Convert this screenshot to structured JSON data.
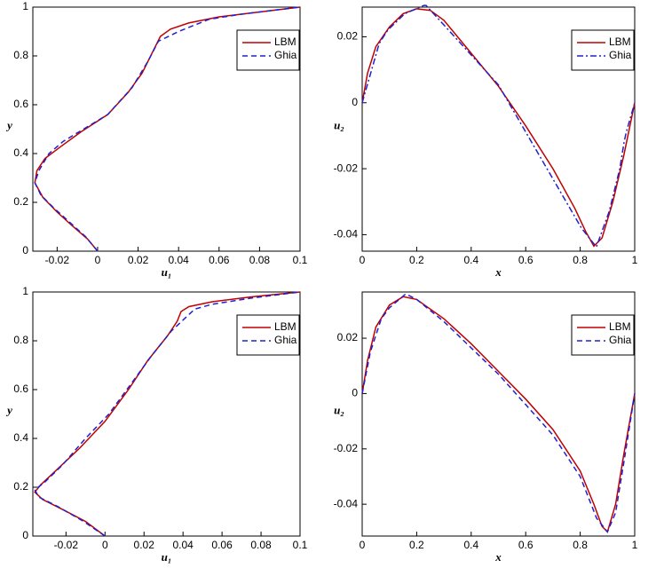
{
  "chart_data": [
    {
      "type": "line",
      "x_label": "u₁",
      "y_label": "y",
      "xlim": [
        -0.032,
        0.1
      ],
      "ylim": [
        0,
        1
      ],
      "xticks": [
        -0.02,
        0,
        0.02,
        0.04,
        0.06,
        0.08,
        0.1
      ],
      "yticks": [
        0,
        0.2,
        0.4,
        0.6,
        0.8,
        1
      ],
      "legend": "upper right",
      "series": [
        {
          "name": "LBM",
          "color": "#c00000",
          "style": "solid",
          "x": [
            0,
            -0.005,
            -0.012,
            -0.02,
            -0.027,
            -0.031,
            -0.03,
            -0.026,
            -0.018,
            -0.008,
            0.005,
            0.015,
            0.022,
            0.028,
            0.031,
            0.036,
            0.045,
            0.06,
            0.08,
            0.1
          ],
          "values": [
            0,
            0.05,
            0.1,
            0.16,
            0.22,
            0.28,
            0.33,
            0.38,
            0.43,
            0.49,
            0.56,
            0.65,
            0.73,
            0.83,
            0.88,
            0.91,
            0.935,
            0.96,
            0.98,
            1
          ]
        },
        {
          "name": "Ghia",
          "color": "#2020d0",
          "style": "dashed",
          "x": [
            0,
            -0.006,
            -0.014,
            -0.022,
            -0.028,
            -0.031,
            -0.029,
            -0.024,
            -0.017,
            -0.005,
            0.005,
            0.017,
            0.025,
            0.03,
            0.04,
            0.055,
            0.07,
            0.085,
            0.1
          ],
          "values": [
            0,
            0.06,
            0.12,
            0.18,
            0.23,
            0.28,
            0.33,
            0.4,
            0.45,
            0.51,
            0.56,
            0.67,
            0.78,
            0.86,
            0.9,
            0.95,
            0.97,
            0.985,
            1
          ]
        }
      ]
    },
    {
      "type": "line",
      "x_label": "x",
      "y_label": "u₂",
      "xlim": [
        0,
        1
      ],
      "ylim": [
        -0.045,
        0.029
      ],
      "xticks": [
        0,
        0.2,
        0.4,
        0.6,
        0.8,
        1
      ],
      "yticks": [
        -0.04,
        -0.02,
        0,
        0.02
      ],
      "legend": "upper right",
      "series": [
        {
          "name": "LBM",
          "color": "#c00000",
          "style": "solid",
          "x": [
            0,
            0.02,
            0.05,
            0.1,
            0.15,
            0.2,
            0.25,
            0.3,
            0.4,
            0.5,
            0.6,
            0.7,
            0.78,
            0.82,
            0.85,
            0.88,
            0.92,
            0.96,
            1
          ],
          "values": [
            0,
            0.009,
            0.017,
            0.023,
            0.027,
            0.0285,
            0.028,
            0.025,
            0.015,
            0.005,
            -0.007,
            -0.02,
            -0.032,
            -0.039,
            -0.0435,
            -0.041,
            -0.03,
            -0.016,
            0
          ]
        },
        {
          "name": "Ghia",
          "color": "#2020d0",
          "style": "dashdot",
          "x": [
            0,
            0.0625,
            0.0703,
            0.0781,
            0.0938,
            0.1563,
            0.2266,
            0.2344,
            0.5,
            0.8047,
            0.8594,
            0.9063,
            0.9453,
            0.9531,
            0.9609,
            0.9688,
            1
          ],
          "values": [
            0,
            0.018,
            0.019,
            0.02,
            0.022,
            0.027,
            0.0295,
            0.0295,
            0.0054,
            -0.038,
            -0.0437,
            -0.033,
            -0.02,
            -0.016,
            -0.012,
            -0.009,
            0
          ]
        }
      ]
    },
    {
      "type": "line",
      "x_label": "u₁",
      "y_label": "y",
      "xlim": [
        -0.037,
        0.1
      ],
      "ylim": [
        0,
        1
      ],
      "xticks": [
        -0.02,
        0,
        0.02,
        0.04,
        0.06,
        0.08,
        0.1
      ],
      "yticks": [
        0,
        0.2,
        0.4,
        0.6,
        0.8,
        1
      ],
      "legend": "upper right",
      "series": [
        {
          "name": "LBM",
          "color": "#c00000",
          "style": "solid",
          "x": [
            0,
            -0.01,
            -0.022,
            -0.032,
            -0.036,
            -0.033,
            -0.025,
            -0.013,
            0,
            0.012,
            0.022,
            0.032,
            0.037,
            0.039,
            0.043,
            0.055,
            0.075,
            0.1
          ],
          "values": [
            0,
            0.06,
            0.11,
            0.15,
            0.18,
            0.21,
            0.27,
            0.36,
            0.47,
            0.6,
            0.72,
            0.82,
            0.88,
            0.92,
            0.94,
            0.96,
            0.98,
            1
          ]
        },
        {
          "name": "Ghia",
          "color": "#2020d0",
          "style": "dashed",
          "x": [
            0,
            -0.011,
            -0.024,
            -0.034,
            -0.036,
            -0.031,
            -0.022,
            -0.01,
            0.002,
            0.013,
            0.024,
            0.034,
            0.042,
            0.046,
            0.055,
            0.075,
            0.1
          ],
          "values": [
            0,
            0.06,
            0.12,
            0.16,
            0.19,
            0.22,
            0.29,
            0.4,
            0.5,
            0.62,
            0.74,
            0.84,
            0.9,
            0.93,
            0.95,
            0.975,
            1
          ]
        }
      ]
    },
    {
      "type": "line",
      "x_label": "x",
      "y_label": "u₂",
      "xlim": [
        0,
        1
      ],
      "ylim": [
        -0.0515,
        0.0367
      ],
      "xticks": [
        0,
        0.2,
        0.4,
        0.6,
        0.8,
        1
      ],
      "yticks": [
        -0.04,
        -0.02,
        0,
        0.02
      ],
      "legend": "upper right",
      "series": [
        {
          "name": "LBM",
          "color": "#c00000",
          "style": "solid",
          "x": [
            0,
            0.02,
            0.05,
            0.1,
            0.15,
            0.2,
            0.3,
            0.4,
            0.5,
            0.6,
            0.7,
            0.8,
            0.85,
            0.88,
            0.9,
            0.93,
            0.96,
            1
          ],
          "values": [
            0,
            0.012,
            0.024,
            0.032,
            0.035,
            0.034,
            0.027,
            0.018,
            0.008,
            -0.002,
            -0.013,
            -0.028,
            -0.04,
            -0.048,
            -0.05,
            -0.04,
            -0.022,
            0
          ]
        },
        {
          "name": "Ghia",
          "color": "#2020d0",
          "style": "dashed",
          "x": [
            0,
            0.03,
            0.07,
            0.1,
            0.16,
            0.2,
            0.3,
            0.5,
            0.7,
            0.8,
            0.86,
            0.9,
            0.93,
            0.96,
            1
          ],
          "values": [
            0,
            0.015,
            0.027,
            0.031,
            0.036,
            0.034,
            0.026,
            0.007,
            -0.015,
            -0.03,
            -0.045,
            -0.05,
            -0.043,
            -0.025,
            0
          ]
        }
      ]
    }
  ]
}
